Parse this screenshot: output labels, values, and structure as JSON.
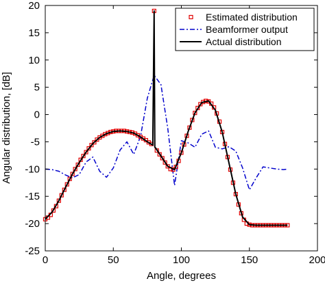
{
  "chart_data": {
    "type": "line",
    "title": "",
    "xlabel": "Angle, degrees",
    "ylabel": "Angular distribution, [dB]",
    "xlim": [
      0,
      200
    ],
    "ylim": [
      -25,
      20
    ],
    "x_ticks": [
      0,
      50,
      100,
      150,
      200
    ],
    "x_tick_labels": [
      "0",
      "50",
      "100",
      "150",
      "200"
    ],
    "y_ticks": [
      -25,
      -20,
      -15,
      -10,
      -5,
      0,
      5,
      10,
      15,
      20
    ],
    "y_tick_labels": [
      "-25",
      "-20",
      "-15",
      "-10",
      "-5",
      "0",
      "5",
      "10",
      "15",
      "20"
    ],
    "grid": false,
    "legend_position": "top-right",
    "colors": {
      "estimated": "#e00000",
      "beamformer": "#0000cc",
      "actual": "#000000"
    },
    "series": [
      {
        "name": "Estimated distribution",
        "style": "red-square-markers",
        "x": [
          0,
          2,
          4,
          6,
          8,
          10,
          12,
          14,
          16,
          18,
          20,
          22,
          24,
          26,
          28,
          30,
          32,
          34,
          36,
          38,
          40,
          42,
          44,
          46,
          48,
          50,
          52,
          54,
          56,
          58,
          60,
          62,
          64,
          66,
          68,
          70,
          72,
          74,
          76,
          78,
          80,
          82,
          84,
          86,
          88,
          90,
          92,
          94,
          96,
          98,
          100,
          102,
          104,
          106,
          108,
          110,
          112,
          114,
          116,
          118,
          120,
          122,
          124,
          126,
          128,
          130,
          132,
          134,
          136,
          138,
          140,
          142,
          144,
          146,
          148,
          150,
          152,
          154,
          156,
          158,
          160,
          162,
          164,
          166,
          168,
          170,
          172,
          174,
          176,
          178
        ],
        "y": [
          -19.2,
          -18.9,
          -18.4,
          -17.6,
          -16.8,
          -15.8,
          -14.8,
          -13.8,
          -12.8,
          -11.8,
          -10.9,
          -10.0,
          -9.2,
          -8.3,
          -7.6,
          -6.9,
          -6.2,
          -5.6,
          -5.1,
          -4.6,
          -4.2,
          -3.9,
          -3.6,
          -3.4,
          -3.2,
          -3.1,
          -3.0,
          -3.0,
          -3.0,
          -3.0,
          -3.1,
          -3.2,
          -3.3,
          -3.5,
          -3.8,
          -4.1,
          -4.4,
          -4.7,
          -5.1,
          -5.4,
          19.0,
          -6.6,
          -7.3,
          -8.0,
          -8.8,
          -9.5,
          -10.0,
          -10.1,
          -9.6,
          -8.5,
          -7.0,
          -5.5,
          -3.9,
          -2.4,
          -1.0,
          0.3,
          1.2,
          1.9,
          2.3,
          2.5,
          2.4,
          2.0,
          1.3,
          0.2,
          -1.3,
          -3.2,
          -5.4,
          -7.8,
          -10.1,
          -12.5,
          -14.6,
          -16.5,
          -18.1,
          -19.3,
          -20.0,
          -20.2,
          -20.3,
          -20.3,
          -20.3,
          -20.3,
          -20.3,
          -20.3,
          -20.3,
          -20.3,
          -20.3,
          -20.3,
          -20.3,
          -20.3,
          -20.3,
          -20.3
        ]
      },
      {
        "name": "Beamformer output",
        "style": "blue-dash-dot",
        "x": [
          0,
          5,
          10,
          15,
          20,
          25,
          30,
          35,
          40,
          45,
          50,
          55,
          60,
          65,
          70,
          75,
          80,
          85,
          90,
          95,
          100,
          105,
          110,
          115,
          120,
          125,
          130,
          135,
          140,
          145,
          150,
          155,
          160,
          165,
          170,
          175,
          178
        ],
        "y": [
          -10.0,
          -10.1,
          -10.4,
          -11.1,
          -11.6,
          -11.0,
          -8.7,
          -7.8,
          -10.4,
          -11.5,
          -9.8,
          -6.5,
          -5.0,
          -7.3,
          -4.0,
          3.0,
          7.2,
          5.5,
          -2.5,
          -13.0,
          -4.8,
          -5.2,
          -6.0,
          -3.6,
          -3.0,
          -6.0,
          -6.3,
          -5.9,
          -6.7,
          -9.8,
          -13.8,
          -11.6,
          -9.6,
          -9.8,
          -10.0,
          -10.1,
          -10.0
        ]
      },
      {
        "name": "Actual distribution",
        "style": "black-solid",
        "x": [
          0,
          5,
          10,
          15,
          20,
          25,
          30,
          35,
          40,
          45,
          50,
          55,
          60,
          65,
          70,
          75,
          79,
          80,
          80.5,
          81,
          85,
          90,
          95,
          100,
          105,
          110,
          115,
          120,
          125,
          130,
          135,
          140,
          145,
          150,
          155,
          160,
          165,
          170,
          175,
          178
        ],
        "y": [
          -19.2,
          -17.9,
          -15.8,
          -13.3,
          -10.9,
          -8.8,
          -6.9,
          -5.3,
          -4.2,
          -3.5,
          -3.1,
          -3.0,
          -3.1,
          -3.4,
          -4.1,
          -5.0,
          -5.6,
          19.0,
          -6.0,
          -6.1,
          -7.6,
          -9.5,
          -10.1,
          -7.0,
          -3.1,
          0.3,
          2.2,
          2.5,
          0.8,
          -3.2,
          -8.9,
          -14.6,
          -18.8,
          -20.2,
          -20.3,
          -20.3,
          -20.3,
          -20.3,
          -20.3,
          -20.3
        ]
      }
    ]
  }
}
